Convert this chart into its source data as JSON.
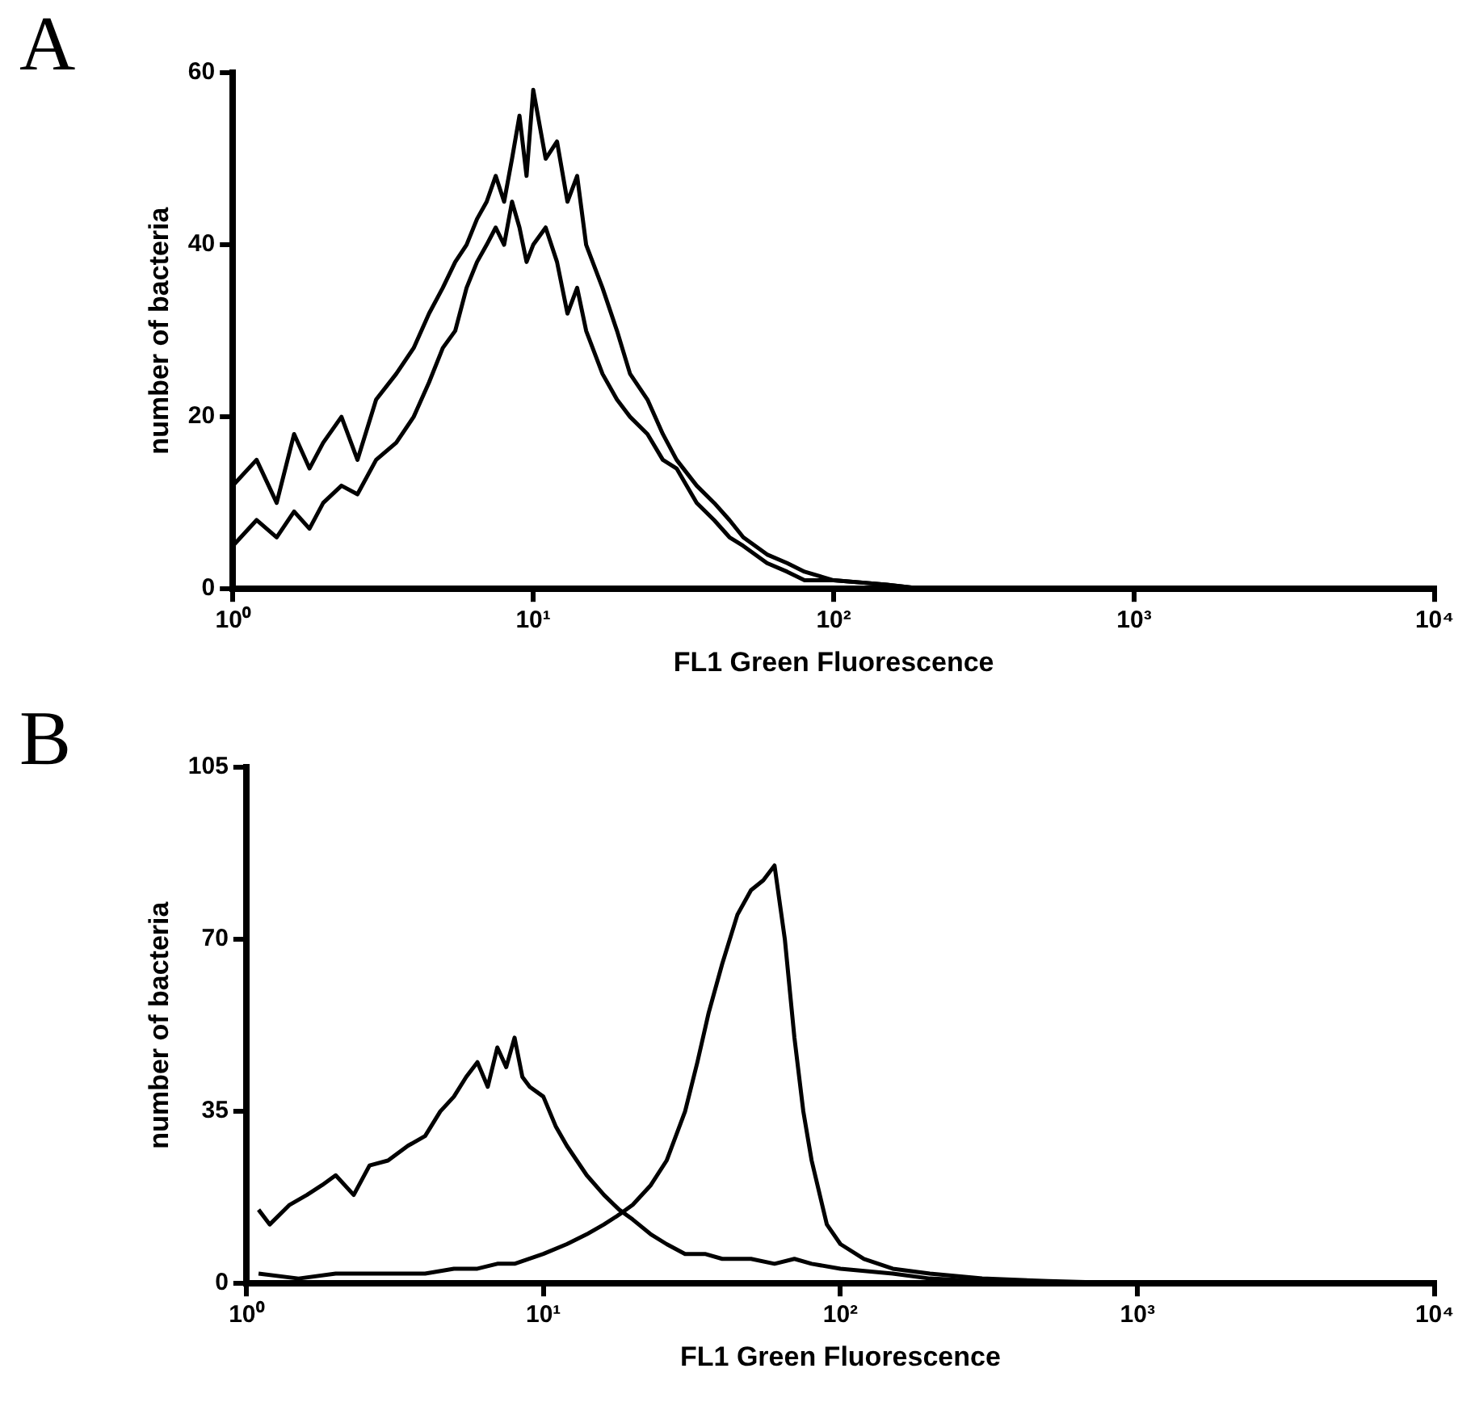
{
  "chart_data": [
    {
      "type": "line",
      "annotations": [
        "A"
      ],
      "xlabel": "FL1 Green Fluorescence",
      "ylabel": "number of bacteria",
      "log": "x",
      "xlim": [
        1,
        10000
      ],
      "xticks": [
        {
          "value": 1,
          "label": "10⁰"
        },
        {
          "value": 10,
          "label": "10¹"
        },
        {
          "value": 100,
          "label": "10²"
        },
        {
          "value": 1000,
          "label": "10³"
        },
        {
          "value": 10000,
          "label": "10⁴"
        }
      ],
      "ylim": [
        0,
        60
      ],
      "yticks": [
        0,
        20,
        40,
        60
      ],
      "grid": false,
      "marker": "none",
      "series": [
        {
          "color": "#000000",
          "x": [
            1,
            1.2,
            1.4,
            1.6,
            1.8,
            2,
            2.3,
            2.6,
            3,
            3.5,
            4,
            4.5,
            5,
            5.5,
            6,
            6.5,
            7,
            7.5,
            8,
            8.5,
            9,
            9.5,
            10,
            11,
            12,
            13,
            14,
            15,
            17,
            19,
            21,
            24,
            27,
            30,
            35,
            40,
            45,
            50,
            60,
            70,
            80,
            100,
            150,
            200,
            500,
            1000,
            10000
          ],
          "values": [
            12,
            15,
            10,
            18,
            14,
            17,
            20,
            15,
            22,
            25,
            28,
            32,
            35,
            38,
            40,
            43,
            45,
            48,
            45,
            50,
            55,
            48,
            58,
            50,
            52,
            45,
            48,
            40,
            35,
            30,
            25,
            22,
            18,
            15,
            12,
            10,
            8,
            6,
            4,
            3,
            2,
            1,
            0.5,
            0,
            0,
            0,
            0
          ]
        },
        {
          "color": "#000000",
          "x": [
            1,
            1.2,
            1.4,
            1.6,
            1.8,
            2,
            2.3,
            2.6,
            3,
            3.5,
            4,
            4.5,
            5,
            5.5,
            6,
            6.5,
            7,
            7.5,
            8,
            8.5,
            9,
            9.5,
            10,
            11,
            12,
            13,
            14,
            15,
            17,
            19,
            21,
            24,
            27,
            30,
            35,
            40,
            45,
            50,
            60,
            70,
            80,
            100,
            150,
            200,
            500,
            1000,
            10000
          ],
          "values": [
            5,
            8,
            6,
            9,
            7,
            10,
            12,
            11,
            15,
            17,
            20,
            24,
            28,
            30,
            35,
            38,
            40,
            42,
            40,
            45,
            42,
            38,
            40,
            42,
            38,
            32,
            35,
            30,
            25,
            22,
            20,
            18,
            15,
            14,
            10,
            8,
            6,
            5,
            3,
            2,
            1,
            1,
            0.5,
            0,
            0,
            0,
            0
          ]
        }
      ]
    },
    {
      "type": "line",
      "annotations": [
        "B"
      ],
      "xlabel": "FL1 Green Fluorescence",
      "ylabel": "number of bacteria",
      "log": "x",
      "xlim": [
        1,
        10000
      ],
      "xticks": [
        {
          "value": 1,
          "label": "10⁰"
        },
        {
          "value": 10,
          "label": "10¹"
        },
        {
          "value": 100,
          "label": "10²"
        },
        {
          "value": 1000,
          "label": "10³"
        },
        {
          "value": 10000,
          "label": "10⁴"
        }
      ],
      "ylim": [
        0,
        105
      ],
      "yticks": [
        0,
        35,
        70,
        105
      ],
      "grid": false,
      "marker": "none",
      "series": [
        {
          "color": "#000000",
          "x": [
            1.1,
            1.2,
            1.4,
            1.6,
            1.8,
            2,
            2.3,
            2.6,
            3,
            3.5,
            4,
            4.5,
            5,
            5.5,
            6,
            6.5,
            7,
            7.5,
            8,
            8.5,
            9,
            10,
            11,
            12,
            14,
            16,
            18,
            20,
            23,
            26,
            30,
            35,
            40,
            50,
            60,
            70,
            80,
            100,
            150,
            200,
            300,
            500,
            1000,
            10000
          ],
          "values": [
            15,
            12,
            16,
            18,
            20,
            22,
            18,
            24,
            25,
            28,
            30,
            35,
            38,
            42,
            45,
            40,
            48,
            44,
            50,
            42,
            40,
            38,
            32,
            28,
            22,
            18,
            15,
            13,
            10,
            8,
            6,
            6,
            5,
            5,
            4,
            5,
            4,
            3,
            2,
            1,
            0.5,
            0,
            0,
            0
          ]
        },
        {
          "color": "#000000",
          "x": [
            1.1,
            1.5,
            2,
            3,
            4,
            5,
            6,
            7,
            8,
            10,
            12,
            14,
            16,
            18,
            20,
            23,
            26,
            30,
            33,
            36,
            40,
            45,
            50,
            55,
            60,
            65,
            70,
            75,
            80,
            90,
            100,
            120,
            150,
            200,
            300,
            500,
            1000,
            10000
          ],
          "values": [
            2,
            1,
            2,
            2,
            2,
            3,
            3,
            4,
            4,
            6,
            8,
            10,
            12,
            14,
            16,
            20,
            25,
            35,
            45,
            55,
            65,
            75,
            80,
            82,
            85,
            70,
            50,
            35,
            25,
            12,
            8,
            5,
            3,
            2,
            1,
            0.5,
            0,
            0
          ]
        }
      ]
    }
  ]
}
